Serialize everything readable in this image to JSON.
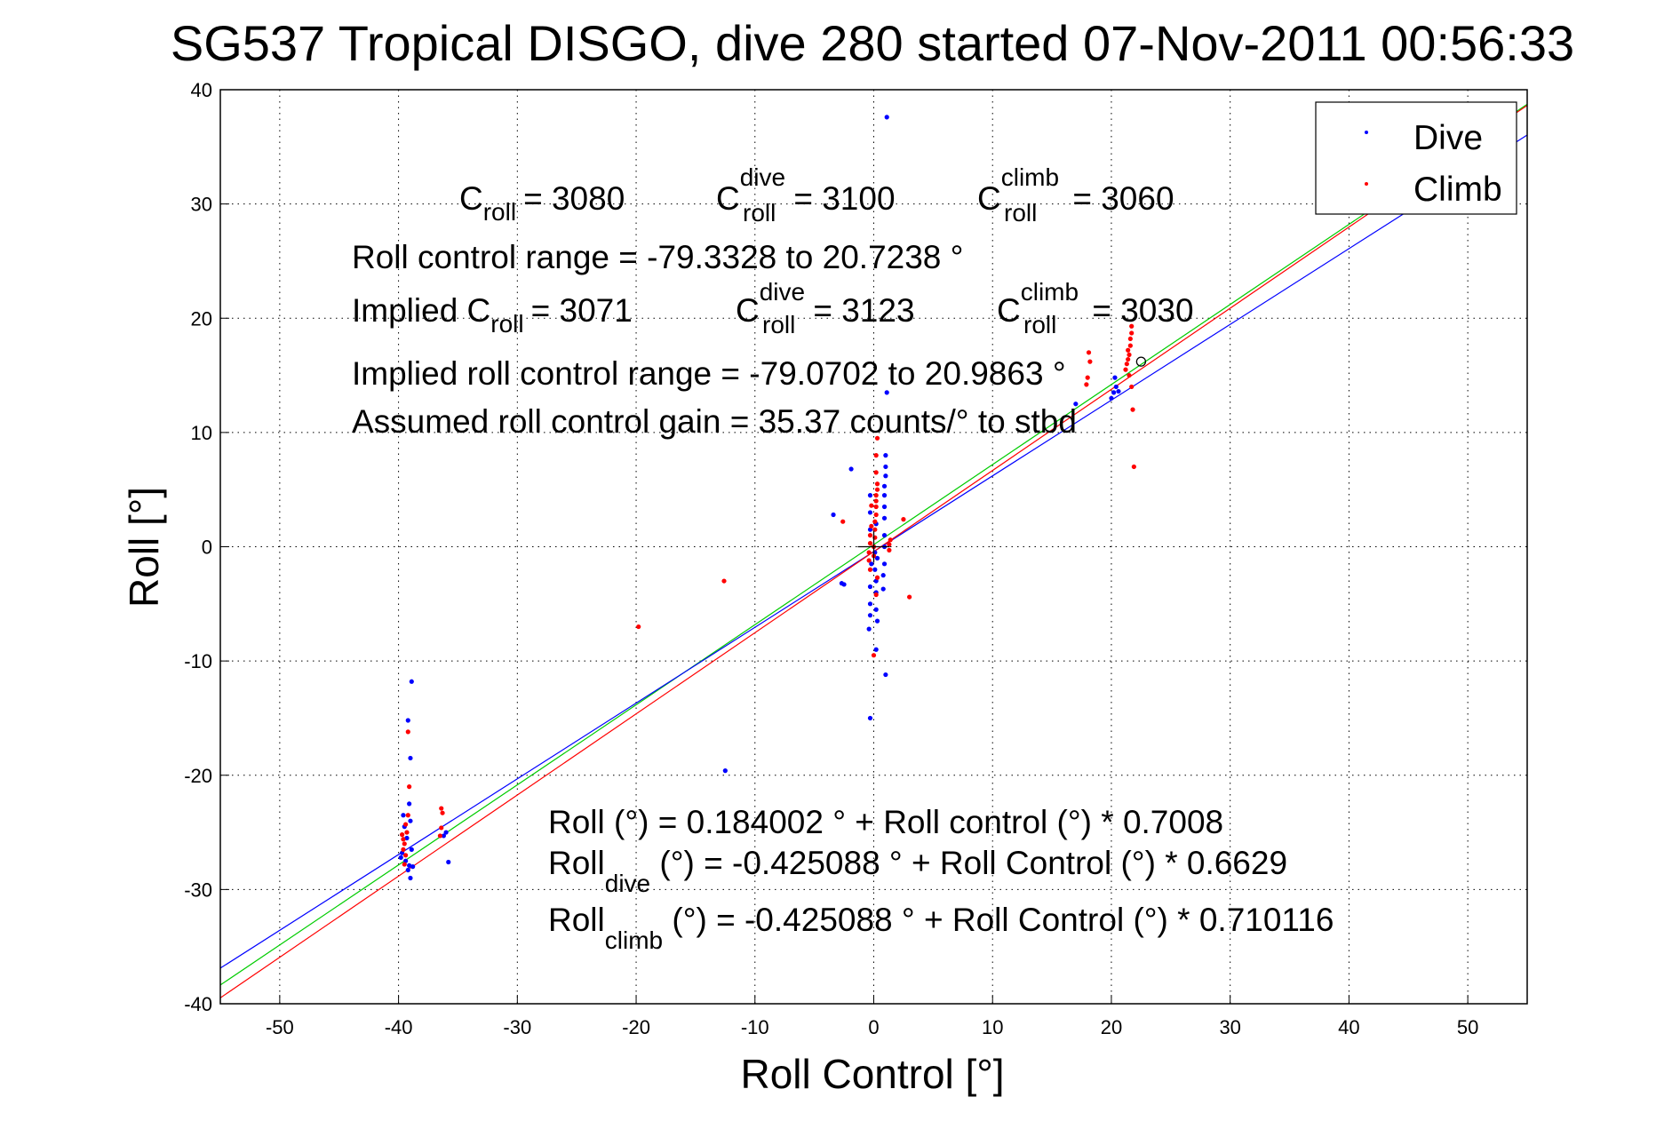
{
  "chart_data": {
    "type": "scatter",
    "title": "SG537 Tropical DISGO, dive 280 started 07-Nov-2011 00:56:33",
    "xlabel": "Roll Control [°]",
    "ylabel": "Roll [°]",
    "xlim": [
      -55,
      55
    ],
    "ylim": [
      -40,
      40
    ],
    "xticks": [
      -50,
      -40,
      -30,
      -20,
      -10,
      0,
      10,
      20,
      30,
      40,
      50
    ],
    "yticks": [
      -40,
      -30,
      -20,
      -10,
      0,
      10,
      20,
      30,
      40
    ],
    "grid": true,
    "legend": {
      "placement": "top-right",
      "entries": [
        "Dive",
        "Climb"
      ]
    },
    "colors": {
      "dive": "#0000ff",
      "climb": "#ff0000",
      "fit_all": "#00cc00"
    },
    "series": [
      {
        "name": "Dive",
        "color": "#0000ff",
        "points": [
          [
            -39.6,
            -23.5
          ],
          [
            -39.5,
            -24.5
          ],
          [
            -39.3,
            -25.5
          ],
          [
            -39.7,
            -26.8
          ],
          [
            -39.4,
            -27.5
          ],
          [
            -39.2,
            -28.3
          ],
          [
            -39.0,
            -29.0
          ],
          [
            -39.1,
            -27.9
          ],
          [
            -38.9,
            -26.5
          ],
          [
            -39.0,
            -24.0
          ],
          [
            -39.1,
            -22.5
          ],
          [
            -39.2,
            -15.2
          ],
          [
            -38.9,
            -11.8
          ],
          [
            -39.0,
            -18.5
          ],
          [
            -38.8,
            -28.0
          ],
          [
            -39.8,
            -27.2
          ],
          [
            -36.2,
            -25.3
          ],
          [
            -36.0,
            -25.0
          ],
          [
            -35.8,
            -27.6
          ],
          [
            -12.5,
            -19.6
          ],
          [
            -3.4,
            2.8
          ],
          [
            -2.7,
            -3.2
          ],
          [
            -2.5,
            -3.3
          ],
          [
            -1.9,
            6.8
          ],
          [
            -0.3,
            4.5
          ],
          [
            -0.3,
            3.0
          ],
          [
            -0.3,
            1.5
          ],
          [
            -0.2,
            -1.5
          ],
          [
            -0.3,
            -3.5
          ],
          [
            -0.3,
            -5.0
          ],
          [
            -0.3,
            -6.0
          ],
          [
            -0.4,
            -7.2
          ],
          [
            -0.3,
            -15.0
          ],
          [
            0.1,
            -0.5
          ],
          [
            0.1,
            -2.0
          ],
          [
            0.2,
            -3.0
          ],
          [
            0.2,
            -4.0
          ],
          [
            0.2,
            -5.5
          ],
          [
            0.3,
            -6.5
          ],
          [
            0.2,
            -9.0
          ],
          [
            0.3,
            -1.0
          ],
          [
            0.2,
            2.0
          ],
          [
            0.8,
            -2.5
          ],
          [
            0.8,
            -3.7
          ],
          [
            0.9,
            -1.5
          ],
          [
            0.9,
            1.0
          ],
          [
            0.9,
            2.5
          ],
          [
            0.9,
            3.5
          ],
          [
            0.9,
            4.5
          ],
          [
            0.9,
            5.3
          ],
          [
            1.0,
            6.2
          ],
          [
            1.0,
            7.0
          ],
          [
            1.0,
            8.0
          ],
          [
            1.1,
            13.5
          ],
          [
            1.0,
            -11.2
          ],
          [
            1.1,
            37.6
          ],
          [
            0.9,
            0.0
          ],
          [
            17.0,
            12.5
          ],
          [
            20.0,
            13.0
          ],
          [
            20.2,
            13.5
          ],
          [
            20.4,
            14.0
          ],
          [
            20.3,
            14.8
          ],
          [
            20.6,
            13.6
          ]
        ]
      },
      {
        "name": "Climb",
        "color": "#ff0000",
        "points": [
          [
            -39.7,
            -25.2
          ],
          [
            -39.6,
            -25.6
          ],
          [
            -39.5,
            -26.0
          ],
          [
            -39.6,
            -26.5
          ],
          [
            -39.4,
            -27.0
          ],
          [
            -39.5,
            -27.8
          ],
          [
            -39.3,
            -25.0
          ],
          [
            -39.2,
            -23.5
          ],
          [
            -39.1,
            -21.0
          ],
          [
            -39.2,
            -16.2
          ],
          [
            -39.4,
            -24.3
          ],
          [
            -36.4,
            -22.9
          ],
          [
            -36.3,
            -23.3
          ],
          [
            -36.5,
            -25.3
          ],
          [
            -36.4,
            -24.6
          ],
          [
            -19.8,
            -7.0
          ],
          [
            -12.6,
            -3.0
          ],
          [
            3.0,
            -4.4
          ],
          [
            2.5,
            2.4
          ],
          [
            1.4,
            0.6
          ],
          [
            1.3,
            0.2
          ],
          [
            1.3,
            -0.3
          ],
          [
            -2.6,
            2.2
          ],
          [
            -0.4,
            -0.5
          ],
          [
            -0.4,
            -1.2
          ],
          [
            -0.3,
            -2.0
          ],
          [
            -0.3,
            0.3
          ],
          [
            -0.3,
            1.0
          ],
          [
            -0.2,
            1.8
          ],
          [
            -0.2,
            3.6
          ],
          [
            0.0,
            0.0
          ],
          [
            0.0,
            -0.8
          ],
          [
            0.1,
            0.8
          ],
          [
            0.1,
            1.5
          ],
          [
            0.1,
            2.2
          ],
          [
            0.2,
            2.8
          ],
          [
            0.2,
            3.5
          ],
          [
            0.2,
            4.0
          ],
          [
            0.2,
            4.5
          ],
          [
            0.3,
            5.0
          ],
          [
            0.3,
            5.5
          ],
          [
            0.2,
            6.5
          ],
          [
            0.2,
            8.0
          ],
          [
            0.3,
            9.5
          ],
          [
            0.3,
            -2.7
          ],
          [
            0.2,
            -4.2
          ],
          [
            0.0,
            -9.5
          ],
          [
            17.9,
            14.2
          ],
          [
            18.0,
            14.8
          ],
          [
            18.2,
            16.2
          ],
          [
            18.1,
            17.0
          ],
          [
            21.2,
            15.5
          ],
          [
            21.3,
            16.0
          ],
          [
            21.4,
            16.4
          ],
          [
            21.5,
            16.8
          ],
          [
            21.4,
            17.2
          ],
          [
            21.6,
            17.6
          ],
          [
            21.6,
            18.2
          ],
          [
            21.7,
            18.7
          ],
          [
            21.7,
            19.3
          ],
          [
            21.5,
            15.0
          ],
          [
            21.7,
            14.0
          ],
          [
            21.9,
            7.0
          ],
          [
            21.8,
            12.0
          ]
        ]
      }
    ],
    "fit_lines": [
      {
        "name": "Roll fit (all)",
        "color": "#00cc00",
        "intercept": 0.184002,
        "slope": 0.7008
      },
      {
        "name": "Roll dive fit",
        "color": "#0000ff",
        "intercept": -0.425088,
        "slope": 0.6629
      },
      {
        "name": "Roll climb fit",
        "color": "#ff0000",
        "intercept": -0.425088,
        "slope": 0.710116
      }
    ],
    "markers": [
      {
        "type": "plus",
        "x": 0,
        "y": 0
      },
      {
        "type": "circle",
        "x": 22.5,
        "y": 16.2
      }
    ],
    "annotations": {
      "c": "C",
      "roll": "roll",
      "dive": "dive",
      "climb": "climb",
      "c_roll": "= 3080",
      "c_roll_dive": "= 3100",
      "c_roll_climb": "= 3060",
      "range": "Roll control range = -79.3328 to 20.7238 °",
      "implied_prefix": "Implied C",
      "implied_c_roll": "= 3071",
      "implied_c_roll_dive": "= 3123",
      "implied_c_roll_climb": "= 3030",
      "implied_range": "Implied roll control range = -79.0702 to 20.9863 °",
      "gain": "Assumed roll control gain = 35.37 counts/° to stbd",
      "eq_all": "Roll (°) = 0.184002 ° + Roll control (°) * 0.7008",
      "eq_roll": "Roll",
      "eq_dive_rest": " (°) = -0.425088 ° + Roll Control (°) * 0.6629",
      "eq_climb_rest": " (°) = -0.425088 ° + Roll Control (°) * 0.710116"
    }
  }
}
